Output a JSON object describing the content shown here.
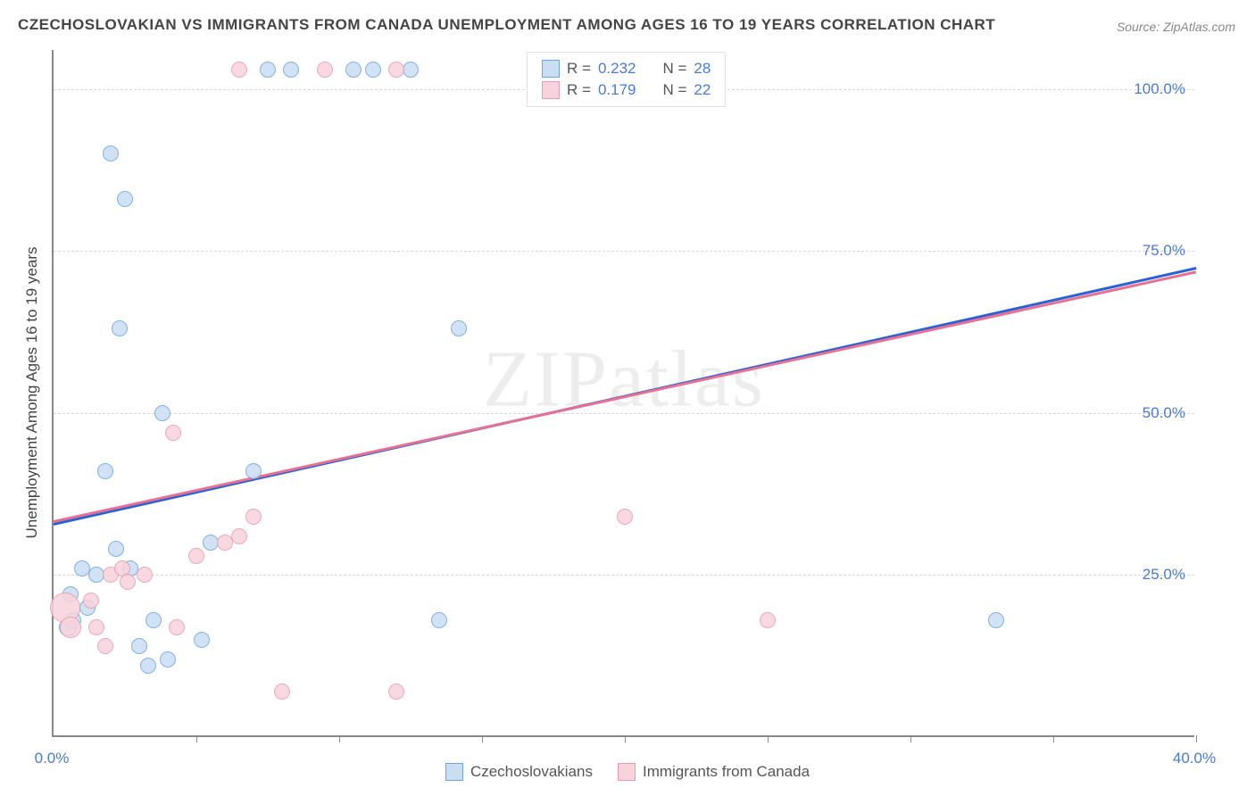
{
  "title": "CZECHOSLOVAKIAN VS IMMIGRANTS FROM CANADA UNEMPLOYMENT AMONG AGES 16 TO 19 YEARS CORRELATION CHART",
  "source": "Source: ZipAtlas.com",
  "watermark": "ZIPatlas",
  "y_axis_label": "Unemployment Among Ages 16 to 19 years",
  "chart": {
    "type": "scatter",
    "xlim": [
      0,
      40
    ],
    "ylim": [
      0,
      106
    ],
    "x_ticks": [
      0,
      5,
      10,
      15,
      20,
      25,
      30,
      35,
      40
    ],
    "x_tick_labels_shown": {
      "0": "0.0%",
      "40": "40.0%"
    },
    "y_grid": [
      25,
      50,
      75,
      100
    ],
    "y_tick_labels": {
      "25": "25.0%",
      "50": "50.0%",
      "75": "75.0%",
      "100": "100.0%"
    },
    "background_color": "#ffffff",
    "grid_color": "#d8d8d8",
    "axis_color": "#888888",
    "label_color": "#4a7bd0",
    "title_fontsize": 17,
    "axis_fontsize": 17,
    "marker_radius": 9,
    "series": [
      {
        "name": "Czechoslovakians",
        "key": "czech",
        "fill": "#c9ddf3",
        "stroke": "#6ea4e0",
        "line_color": "#2a61d4",
        "R": "0.232",
        "N": "28",
        "trend": {
          "x0": 0,
          "y0": 33.0,
          "x1": 40,
          "y1": 72.5
        },
        "points": [
          {
            "x": 0.5,
            "y": 17,
            "r": 10
          },
          {
            "x": 0.7,
            "y": 18,
            "r": 9
          },
          {
            "x": 0.6,
            "y": 22,
            "r": 9
          },
          {
            "x": 1.0,
            "y": 26,
            "r": 9
          },
          {
            "x": 1.2,
            "y": 20,
            "r": 9
          },
          {
            "x": 1.5,
            "y": 25,
            "r": 9
          },
          {
            "x": 1.8,
            "y": 41,
            "r": 9
          },
          {
            "x": 2.2,
            "y": 29,
            "r": 9
          },
          {
            "x": 2.3,
            "y": 63,
            "r": 9
          },
          {
            "x": 2.5,
            "y": 83,
            "r": 9
          },
          {
            "x": 2.0,
            "y": 90,
            "r": 9
          },
          {
            "x": 3.0,
            "y": 14,
            "r": 9
          },
          {
            "x": 3.5,
            "y": 18,
            "r": 9
          },
          {
            "x": 3.3,
            "y": 11,
            "r": 9
          },
          {
            "x": 4.0,
            "y": 12,
            "r": 9
          },
          {
            "x": 3.8,
            "y": 50,
            "r": 9
          },
          {
            "x": 5.2,
            "y": 15,
            "r": 9
          },
          {
            "x": 5.5,
            "y": 30,
            "r": 9
          },
          {
            "x": 7.0,
            "y": 41,
            "r": 9
          },
          {
            "x": 7.5,
            "y": 103,
            "r": 9
          },
          {
            "x": 8.3,
            "y": 103,
            "r": 9
          },
          {
            "x": 10.5,
            "y": 103,
            "r": 9
          },
          {
            "x": 11.2,
            "y": 103,
            "r": 9
          },
          {
            "x": 12.5,
            "y": 103,
            "r": 9
          },
          {
            "x": 13.5,
            "y": 18,
            "r": 9
          },
          {
            "x": 14.2,
            "y": 63,
            "r": 9
          },
          {
            "x": 33.0,
            "y": 18,
            "r": 9
          },
          {
            "x": 2.7,
            "y": 26,
            "r": 9
          }
        ]
      },
      {
        "name": "Immigrants from Canada",
        "key": "canada",
        "fill": "#f7d3dc",
        "stroke": "#e99ab2",
        "line_color": "#e77094",
        "R": "0.179",
        "N": "22",
        "trend": {
          "x0": 0,
          "y0": 33.5,
          "x1": 40,
          "y1": 72.0
        },
        "points": [
          {
            "x": 0.4,
            "y": 20,
            "r": 17
          },
          {
            "x": 0.6,
            "y": 17,
            "r": 12
          },
          {
            "x": 1.3,
            "y": 21,
            "r": 9
          },
          {
            "x": 1.5,
            "y": 17,
            "r": 9
          },
          {
            "x": 1.8,
            "y": 14,
            "r": 9
          },
          {
            "x": 2.0,
            "y": 25,
            "r": 9
          },
          {
            "x": 2.4,
            "y": 26,
            "r": 9
          },
          {
            "x": 2.6,
            "y": 24,
            "r": 9
          },
          {
            "x": 3.2,
            "y": 25,
            "r": 9
          },
          {
            "x": 4.2,
            "y": 47,
            "r": 9
          },
          {
            "x": 4.3,
            "y": 17,
            "r": 9
          },
          {
            "x": 5.0,
            "y": 28,
            "r": 9
          },
          {
            "x": 6.0,
            "y": 30,
            "r": 9
          },
          {
            "x": 6.5,
            "y": 31,
            "r": 9
          },
          {
            "x": 7.0,
            "y": 34,
            "r": 9
          },
          {
            "x": 8.0,
            "y": 7,
            "r": 9
          },
          {
            "x": 6.5,
            "y": 103,
            "r": 9
          },
          {
            "x": 9.5,
            "y": 103,
            "r": 9
          },
          {
            "x": 12.0,
            "y": 103,
            "r": 9
          },
          {
            "x": 12.0,
            "y": 7,
            "r": 9
          },
          {
            "x": 20.0,
            "y": 34,
            "r": 9
          },
          {
            "x": 25.0,
            "y": 18,
            "r": 9
          }
        ]
      }
    ],
    "legend_top_labels": {
      "R": "R =",
      "N": "N ="
    },
    "legend_bottom": [
      {
        "key": "czech",
        "label": "Czechoslovakians"
      },
      {
        "key": "canada",
        "label": "Immigrants from Canada"
      }
    ]
  }
}
